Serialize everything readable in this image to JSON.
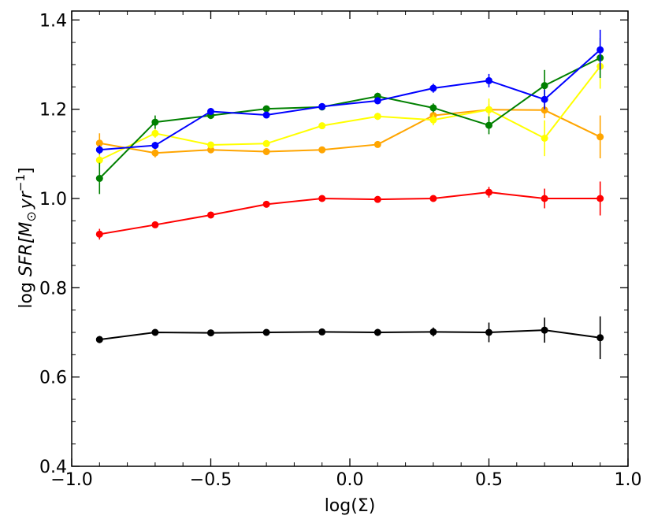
{
  "chart_data": {
    "type": "line",
    "xlabel": "log(Σ)",
    "ylabel_prefix": "log ",
    "ylabel_main": "SFR[M",
    "ylabel_sub": "⊙",
    "ylabel_mid": "yr",
    "ylabel_sup": "−1",
    "ylabel_end": "]",
    "xlim": [
      -1.0,
      1.0
    ],
    "ylim": [
      0.4,
      1.42
    ],
    "xticks": [
      -1.0,
      -0.5,
      0.0,
      0.5,
      1.0
    ],
    "xtick_labels": [
      "−1.0",
      "−0.5",
      "0.0",
      "0.5",
      "1.0"
    ],
    "yticks": [
      0.4,
      0.6,
      0.8,
      1.0,
      1.2,
      1.4
    ],
    "ytick_labels": [
      "0.4",
      "0.6",
      "0.8",
      "1.0",
      "1.2",
      "1.4"
    ],
    "x": [
      -0.9,
      -0.7,
      -0.5,
      -0.3,
      -0.1,
      0.1,
      0.3,
      0.5,
      0.7,
      0.9
    ],
    "series": [
      {
        "color": "#000000",
        "values": [
          0.684,
          0.7,
          0.699,
          0.7,
          0.701,
          0.7,
          0.701,
          0.7,
          0.705,
          0.688
        ],
        "errors": [
          0.008,
          0.006,
          0.005,
          0.005,
          0.006,
          0.008,
          0.01,
          0.022,
          0.028,
          0.048
        ]
      },
      {
        "color": "#ff0000",
        "values": [
          0.92,
          0.941,
          0.963,
          0.987,
          1.0,
          0.998,
          1.0,
          1.014,
          1.0,
          1.0
        ],
        "errors": [
          0.012,
          0.006,
          0.005,
          0.005,
          0.005,
          0.005,
          0.006,
          0.012,
          0.022,
          0.038
        ]
      },
      {
        "color": "#ffa500",
        "values": [
          1.124,
          1.102,
          1.109,
          1.105,
          1.109,
          1.121,
          1.186,
          1.199,
          1.198,
          1.138
        ],
        "errors": [
          0.022,
          0.01,
          0.007,
          0.006,
          0.006,
          0.007,
          0.01,
          0.012,
          0.018,
          0.048
        ]
      },
      {
        "color": "#ffff00",
        "values": [
          1.086,
          1.146,
          1.12,
          1.123,
          1.163,
          1.184,
          1.176,
          1.199,
          1.135,
          1.296
        ],
        "errors": [
          0.014,
          0.01,
          0.007,
          0.006,
          0.007,
          0.008,
          0.012,
          0.025,
          0.04,
          0.05
        ]
      },
      {
        "color": "#008000",
        "values": [
          1.045,
          1.171,
          1.186,
          1.201,
          1.205,
          1.229,
          1.203,
          1.164,
          1.253,
          1.315
        ],
        "errors": [
          0.035,
          0.015,
          0.008,
          0.006,
          0.006,
          0.008,
          0.01,
          0.02,
          0.035,
          0.045
        ]
      },
      {
        "color": "#0000ff",
        "values": [
          1.109,
          1.119,
          1.195,
          1.187,
          1.206,
          1.219,
          1.247,
          1.264,
          1.222,
          1.333
        ],
        "errors": [
          0.01,
          0.008,
          0.008,
          0.006,
          0.006,
          0.008,
          0.01,
          0.015,
          0.022,
          0.045
        ]
      }
    ]
  }
}
